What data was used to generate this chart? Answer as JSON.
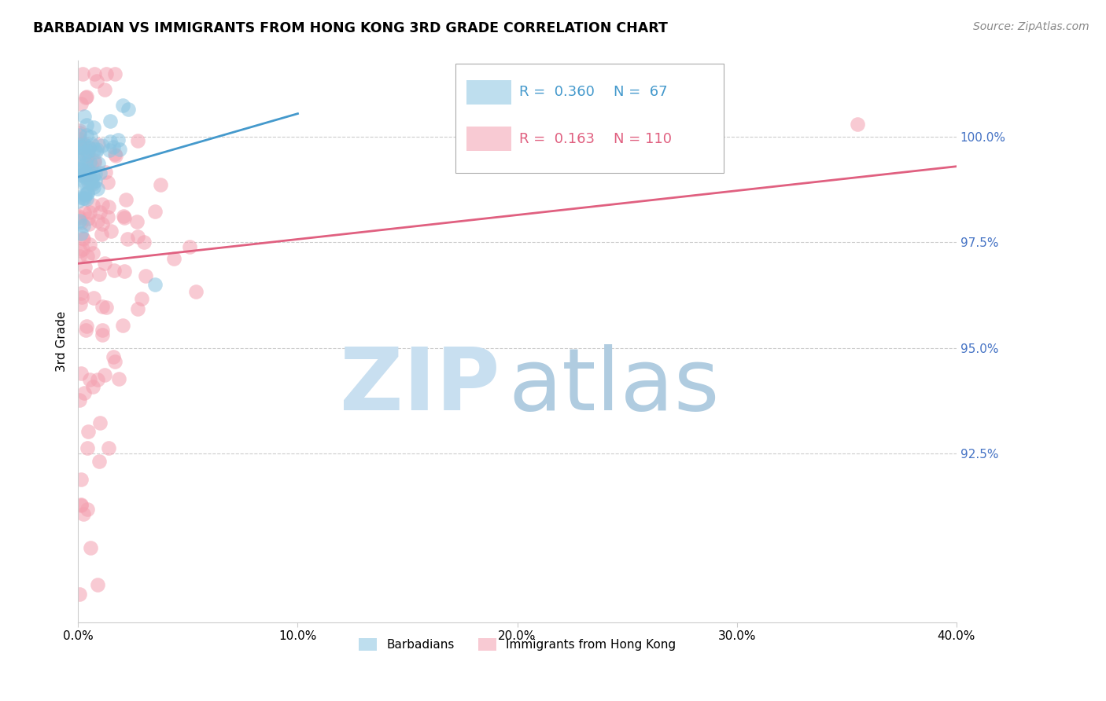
{
  "title": "BARBADIAN VS IMMIGRANTS FROM HONG KONG 3RD GRADE CORRELATION CHART",
  "source": "Source: ZipAtlas.com",
  "ylabel": "3rd Grade",
  "legend_labels": [
    "Barbadians",
    "Immigrants from Hong Kong"
  ],
  "r_blue": 0.36,
  "n_blue": 67,
  "r_pink": 0.163,
  "n_pink": 110,
  "blue_color": "#89c4e1",
  "pink_color": "#f4a0b0",
  "blue_line_color": "#4499cc",
  "pink_line_color": "#e06080",
  "x_min": 0.0,
  "x_max": 40.0,
  "y_min": 88.5,
  "y_max": 101.8,
  "yticks": [
    92.5,
    95.0,
    97.5,
    100.0
  ],
  "xtick_labels": [
    "0.0%",
    "10.0%",
    "20.0%",
    "30.0%",
    "40.0%"
  ],
  "xtick_values": [
    0.0,
    10.0,
    20.0,
    30.0,
    40.0
  ],
  "watermark_zip_color": "#c8dff0",
  "watermark_atlas_color": "#b0cce0",
  "right_axis_color": "#4472c4",
  "background_color": "#ffffff",
  "grid_color": "#cccccc",
  "blue_trend_x": [
    0.0,
    10.0
  ],
  "blue_trend_y": [
    99.05,
    100.55
  ],
  "pink_trend_x": [
    0.0,
    40.0
  ],
  "pink_trend_y": [
    97.0,
    99.3
  ]
}
